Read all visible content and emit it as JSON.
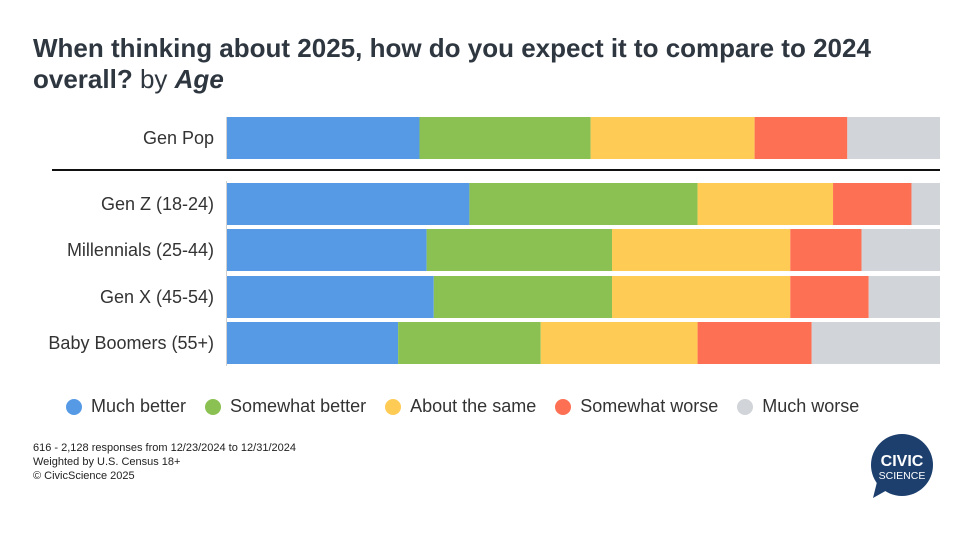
{
  "title": {
    "main": "When thinking about 2025, how do you expect it to compare to 2024 overall?",
    "by": "by",
    "dimension": "Age"
  },
  "chart_data": {
    "type": "bar",
    "orientation": "horizontal",
    "stacked": "100%",
    "categories": [
      "Gen Pop",
      "Gen Z (18-24)",
      "Millennials (25-44)",
      "Gen X (45-54)",
      "Baby Boomers (55+)"
    ],
    "series": [
      {
        "name": "Much better",
        "color": "#569ae6",
        "values": [
          27,
          34,
          28,
          29,
          24
        ]
      },
      {
        "name": "Somewhat better",
        "color": "#8bc152",
        "values": [
          24,
          32,
          26,
          25,
          20
        ]
      },
      {
        "name": "About the same",
        "color": "#fecb55",
        "values": [
          23,
          19,
          25,
          25,
          22
        ]
      },
      {
        "name": "Somewhat worse",
        "color": "#fe7053",
        "values": [
          13,
          11,
          10,
          11,
          16
        ]
      },
      {
        "name": "Much worse",
        "color": "#d1d4d9",
        "values": [
          13,
          4,
          11,
          10,
          18
        ]
      }
    ],
    "xlim": [
      0,
      100
    ],
    "grid": false,
    "legend_position": "bottom"
  },
  "footer": {
    "line1": "616 -  2,128 responses from 12/23/2024 to 12/31/2024",
    "line2": "Weighted by U.S. Census 18+",
    "line3": "© CivicScience 2025"
  },
  "logo": {
    "line1": "CIVIC",
    "line2": "SCIENCE",
    "color": "#1d3f6e"
  }
}
